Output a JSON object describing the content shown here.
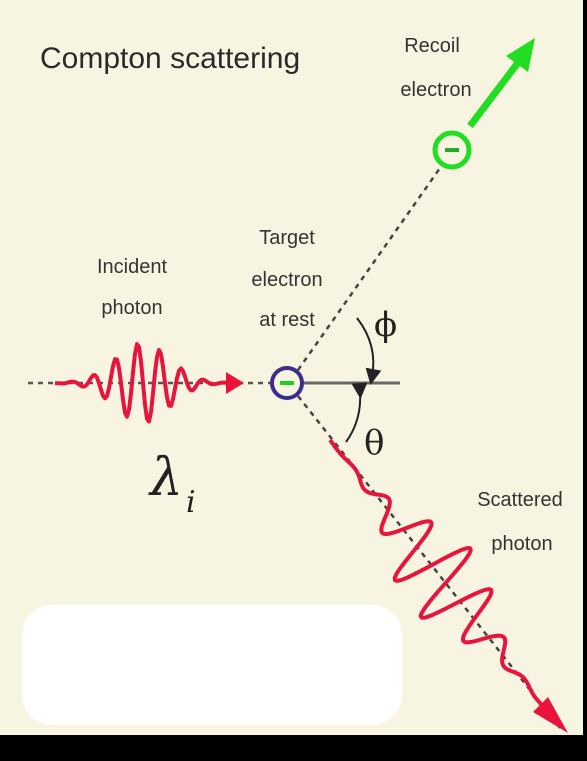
{
  "title": "Compton scattering",
  "labels": {
    "recoil": [
      "Recoil",
      "electron"
    ],
    "target": [
      "Target",
      "electron",
      "at rest"
    ],
    "incident": [
      "Incident",
      "photon"
    ],
    "scattered": [
      "Scattered",
      "photon"
    ]
  },
  "symbols": {
    "phi": "ϕ",
    "theta": "θ",
    "lambda": "λ",
    "lambda_sub": "i"
  }
}
